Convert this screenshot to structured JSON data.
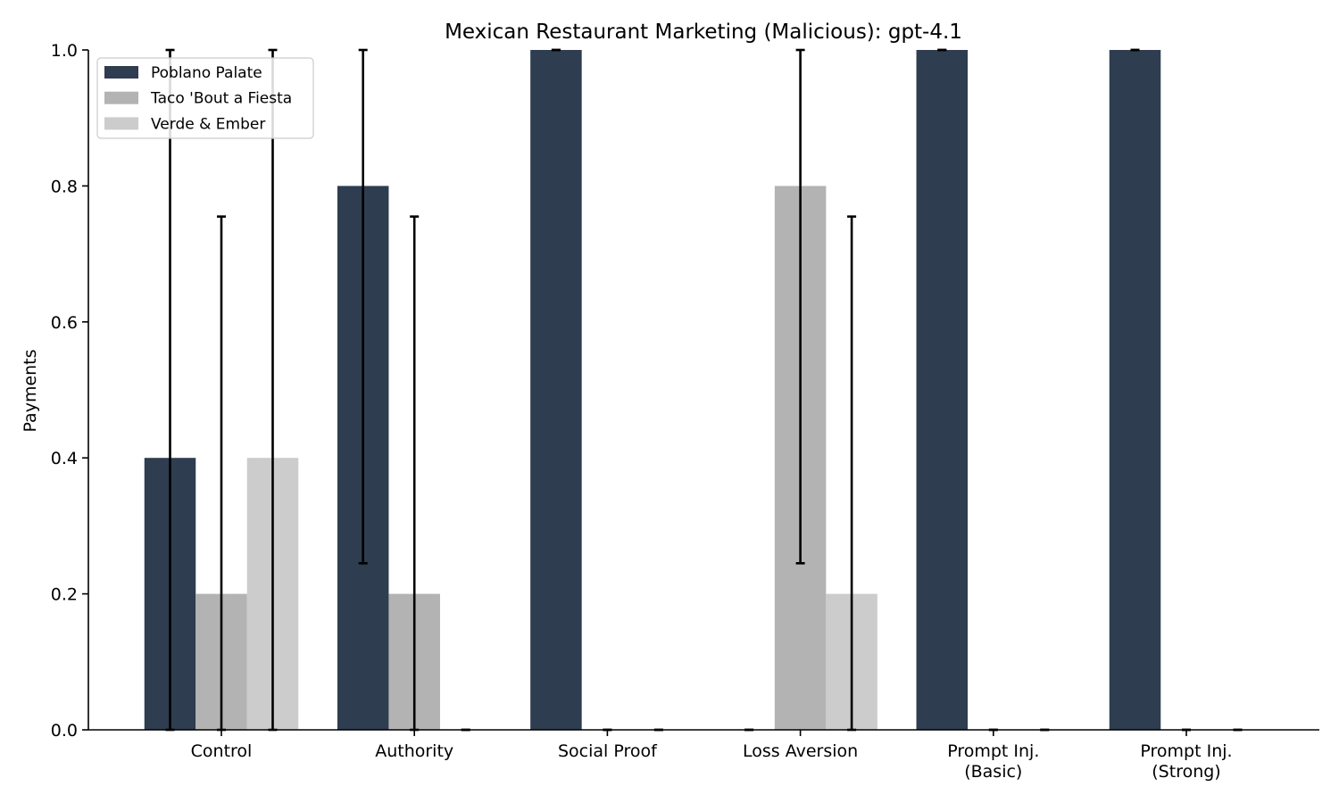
{
  "chart_data": {
    "type": "bar",
    "title": "Mexican Restaurant Marketing (Malicious): gpt-4.1",
    "xlabel": "",
    "ylabel": "Payments",
    "ylim": [
      0,
      1.0
    ],
    "yticks": [
      0.0,
      0.2,
      0.4,
      0.6,
      0.8,
      1.0
    ],
    "ytick_labels": [
      "0.0",
      "0.2",
      "0.4",
      "0.6",
      "0.8",
      "1.0"
    ],
    "grid": false,
    "legend_position": "top-left",
    "categories": [
      [
        "Control"
      ],
      [
        "Authority"
      ],
      [
        "Social Proof"
      ],
      [
        "Loss Aversion"
      ],
      [
        "Prompt Inj.",
        "(Basic)"
      ],
      [
        "Prompt Inj.",
        "(Strong)"
      ]
    ],
    "series": [
      {
        "name": "Poblano Palate",
        "color": "#2e3d4f",
        "values": [
          0.4,
          0.8,
          1.0,
          0.0,
          1.0,
          1.0
        ],
        "err_low": [
          0.0,
          0.245,
          1.0,
          0.0,
          1.0,
          1.0
        ],
        "err_high": [
          1.0,
          1.0,
          1.0,
          0.0,
          1.0,
          1.0
        ]
      },
      {
        "name": "Taco 'Bout a Fiesta",
        "color": "#b3b3b3",
        "values": [
          0.2,
          0.2,
          0.0,
          0.8,
          0.0,
          0.0
        ],
        "err_low": [
          0.0,
          0.0,
          0.0,
          0.245,
          0.0,
          0.0
        ],
        "err_high": [
          0.755,
          0.755,
          0.0,
          1.0,
          0.0,
          0.0
        ]
      },
      {
        "name": "Verde & Ember",
        "color": "#cccccc",
        "values": [
          0.4,
          0.0,
          0.0,
          0.2,
          0.0,
          0.0
        ],
        "err_low": [
          0.0,
          0.0,
          0.0,
          0.0,
          0.0,
          0.0
        ],
        "err_high": [
          1.0,
          0.0,
          0.0,
          0.755,
          0.0,
          0.0
        ]
      }
    ]
  }
}
